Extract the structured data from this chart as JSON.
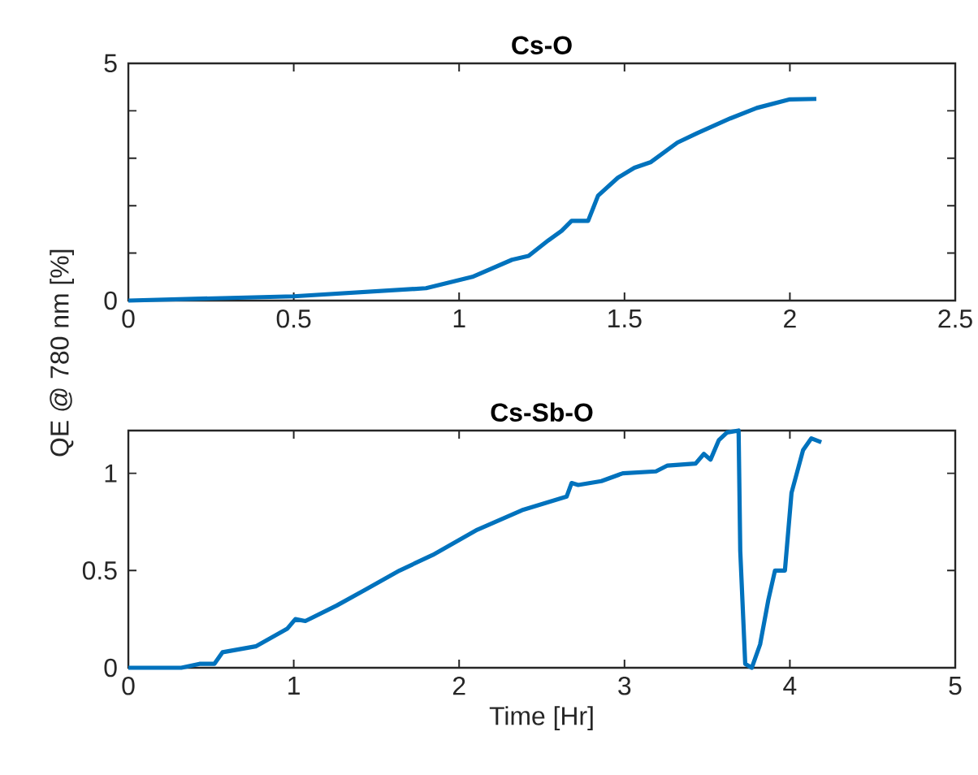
{
  "chart_data": [
    {
      "type": "line",
      "title": "Cs-O",
      "ylabel": "QE @ 780 nm [%]",
      "x": [
        0,
        0.5,
        0.9,
        1.04,
        1.16,
        1.21,
        1.27,
        1.31,
        1.34,
        1.39,
        1.42,
        1.48,
        1.53,
        1.58,
        1.66,
        1.72,
        1.82,
        1.9,
        2.0,
        2.08
      ],
      "series": [
        {
          "color": "#0072bd",
          "values": [
            0,
            0.09,
            0.26,
            0.5,
            0.86,
            0.94,
            1.27,
            1.47,
            1.68,
            1.68,
            2.21,
            2.59,
            2.8,
            2.92,
            3.33,
            3.53,
            3.84,
            4.06,
            4.24,
            4.25
          ]
        }
      ],
      "xlim": [
        0,
        2.5
      ],
      "ylim": [
        0,
        5
      ],
      "xticks": [
        0,
        0.5,
        1,
        1.5,
        2,
        2.5
      ],
      "yticks": [
        0,
        {
          "value": 1,
          "label": null
        },
        {
          "value": 2,
          "label": null
        },
        {
          "value": 3,
          "label": null
        },
        {
          "value": 4,
          "label": null
        },
        5
      ]
    },
    {
      "type": "line",
      "title": "Cs-Sb-O",
      "xlabel": "Time [Hr]",
      "x": [
        0,
        0.32,
        0.43,
        0.52,
        0.57,
        0.77,
        0.96,
        1.01,
        1.07,
        1.26,
        1.43,
        1.64,
        1.84,
        2.11,
        2.38,
        2.65,
        2.68,
        2.72,
        2.86,
        2.99,
        3.19,
        3.26,
        3.43,
        3.48,
        3.52,
        3.57,
        3.62,
        3.69,
        3.7,
        3.73,
        3.77,
        3.82,
        3.87,
        3.91,
        3.97,
        4.01,
        4.08,
        4.13,
        4.19
      ],
      "series": [
        {
          "color": "#0072bd",
          "values": [
            0,
            0,
            0.02,
            0.02,
            0.08,
            0.11,
            0.2,
            0.25,
            0.24,
            0.32,
            0.4,
            0.5,
            0.58,
            0.71,
            0.81,
            0.88,
            0.95,
            0.94,
            0.96,
            1.0,
            1.01,
            1.04,
            1.05,
            1.1,
            1.07,
            1.17,
            1.21,
            1.22,
            0.6,
            0.02,
            0,
            0.12,
            0.35,
            0.5,
            0.5,
            0.9,
            1.12,
            1.18,
            1.16
          ]
        }
      ],
      "xlim": [
        0,
        5
      ],
      "ylim": [
        0,
        1.22
      ],
      "xticks": [
        0,
        1,
        2,
        3,
        4,
        5
      ],
      "yticks": [
        0,
        0.5,
        1
      ]
    }
  ]
}
